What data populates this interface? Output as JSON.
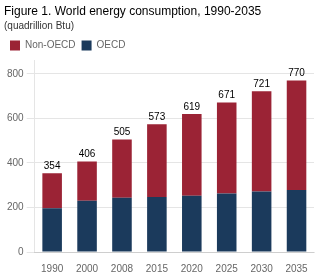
{
  "chart_data": {
    "type": "bar",
    "stacked": true,
    "title": "Figure 1. World energy consumption, 1990-2035",
    "subtitle": "(quadrillion Btu)",
    "categories": [
      "1990",
      "2000",
      "2008",
      "2015",
      "2020",
      "2025",
      "2030",
      "2035"
    ],
    "series": [
      {
        "name": "OECD",
        "color": "#1B3A5C",
        "values": [
          196,
          230,
          243,
          247,
          253,
          263,
          271,
          278
        ]
      },
      {
        "name": "Non-OECD",
        "color": "#9B2335",
        "values": [
          158,
          176,
          262,
          326,
          366,
          408,
          450,
          492
        ]
      }
    ],
    "totals": [
      354,
      406,
      505,
      573,
      619,
      671,
      721,
      770
    ],
    "ylim": [
      0,
      860
    ],
    "yticks": [
      0,
      200,
      400,
      600,
      800
    ],
    "grid": true,
    "legend": "upper left"
  }
}
